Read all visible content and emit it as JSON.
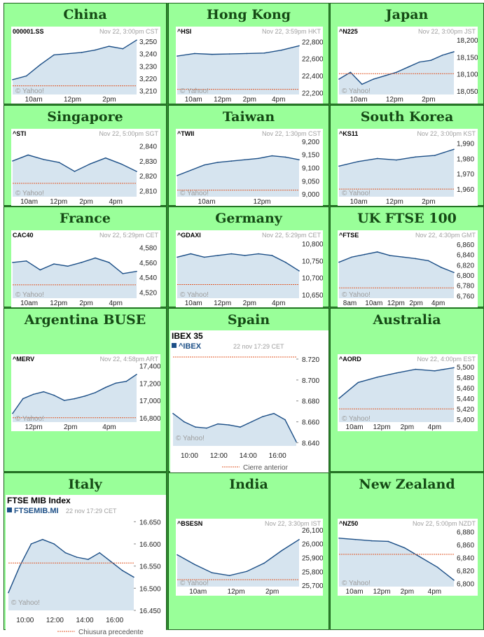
{
  "panels": [
    {
      "title": "China",
      "style": "small",
      "symbol": "000001.SS",
      "subtitle": "Nov 22, 3:00pm CST",
      "yticks": [
        "3,250",
        "3,240",
        "3,230",
        "3,220",
        "3,210"
      ],
      "xticks": [
        "10am",
        "12pm",
        "2pm"
      ]
    },
    {
      "title": "Hong Kong",
      "style": "small",
      "symbol": "^HSI",
      "subtitle": "Nov 22, 3:59pm HKT",
      "yticks": [
        "22,800",
        "22,600",
        "22,400",
        "22,200"
      ],
      "xticks": [
        "10am",
        "12pm",
        "2pm",
        "4pm"
      ]
    },
    {
      "title": "Japan",
      "style": "small",
      "symbol": "^N225",
      "subtitle": "Nov 22, 3:00pm JST",
      "yticks": [
        "18,200",
        "18,150",
        "18,100",
        "18,050"
      ],
      "xticks": [
        "10am",
        "12pm",
        "2pm"
      ]
    },
    {
      "title": "Singapore",
      "style": "small",
      "symbol": "^STI",
      "subtitle": "Nov 22, 5:00pm SGT",
      "yticks": [
        "2,840",
        "2,830",
        "2,820",
        "2,810"
      ],
      "xticks": [
        "10am",
        "12pm",
        "2pm",
        "4pm"
      ]
    },
    {
      "title": "Taiwan",
      "style": "small",
      "symbol": "^TWII",
      "subtitle": "Nov 22, 1:30pm CST",
      "yticks": [
        "9,200",
        "9,150",
        "9,100",
        "9,050",
        "9,000"
      ],
      "xticks": [
        "10am",
        "12pm"
      ]
    },
    {
      "title": "South Korea",
      "style": "small",
      "symbol": "^KS11",
      "subtitle": "Nov 22, 3:00pm KST",
      "yticks": [
        "1,990",
        "1,980",
        "1,970",
        "1,960"
      ],
      "xticks": [
        "10am",
        "12pm",
        "2pm"
      ]
    },
    {
      "title": "France",
      "style": "small",
      "symbol": "CAC40",
      "subtitle": "Nov 22, 5:29pm CET",
      "yticks": [
        "4,580",
        "4,560",
        "4,540",
        "4,520"
      ],
      "xticks": [
        "10am",
        "12pm",
        "2pm",
        "4pm"
      ]
    },
    {
      "title": "Germany",
      "style": "small",
      "symbol": "^GDAXI",
      "subtitle": "Nov 22, 5:29pm CET",
      "yticks": [
        "10,800",
        "10,750",
        "10,700",
        "10,650"
      ],
      "xticks": [
        "10am",
        "12pm",
        "2pm",
        "4pm"
      ]
    },
    {
      "title": "UK FTSE 100",
      "style": "small",
      "symbol": "^FTSE",
      "subtitle": "Nov 22, 4:30pm GMT",
      "yticks": [
        "6,860",
        "6,840",
        "6,820",
        "6,800",
        "6,780",
        "6,760"
      ],
      "xticks": [
        "8am",
        "10am",
        "12pm",
        "2pm",
        "4pm"
      ]
    },
    {
      "title": "Argentina BUSE",
      "style": "small",
      "symbol": "^MERV",
      "subtitle": "Nov 22, 4:58pm ART",
      "yticks": [
        "17,400",
        "17,200",
        "17,000",
        "16,800"
      ],
      "xticks": [
        "12pm",
        "2pm",
        "4pm"
      ]
    },
    {
      "title": "Spain",
      "style": "large",
      "name": "IBEX 35",
      "symbol": "^IBEX",
      "subtitle": "22 nov 17:29 CET",
      "yticks": [
        "8.720",
        "8.700",
        "8.680",
        "8.660",
        "8.640"
      ],
      "xticks": [
        "10:00",
        "12:00",
        "14:00",
        "16:00"
      ],
      "legend": "Cierre anterior"
    },
    {
      "title": "Australia",
      "style": "small",
      "symbol": "^AORD",
      "subtitle": "Nov 22, 4:00pm EST",
      "yticks": [
        "5,500",
        "5,480",
        "5,460",
        "5,440",
        "5,420",
        "5,400"
      ],
      "xticks": [
        "10am",
        "12pm",
        "2pm",
        "4pm"
      ]
    },
    {
      "title": "Italy",
      "style": "large",
      "name": "FTSE MIB Index",
      "symbol": "FTSEMIB.MI",
      "subtitle": "22 nov 17:29 CET",
      "yticks": [
        "16.650",
        "16.600",
        "16.550",
        "16.500",
        "16.450"
      ],
      "xticks": [
        "10:00",
        "12:00",
        "14:00",
        "16:00"
      ],
      "legend": "Chiusura precedente"
    },
    {
      "title": "India",
      "style": "small",
      "symbol": "^BSESN",
      "subtitle": "Nov 22, 3:30pm IST",
      "yticks": [
        "26,100",
        "26,000",
        "25,900",
        "25,800",
        "25,700"
      ],
      "xticks": [
        "10am",
        "12pm",
        "2pm"
      ]
    },
    {
      "title": "New Zealand",
      "style": "small",
      "symbol": "^NZ50",
      "subtitle": "Nov 22, 5:00pm NZDT",
      "yticks": [
        "6,880",
        "6,860",
        "6,840",
        "6,820",
        "6,800"
      ],
      "xticks": [
        "10am",
        "12pm",
        "2pm",
        "4pm"
      ]
    }
  ],
  "watermark": "© Yahoo!",
  "colors": {
    "page_bg": "#99ff99",
    "title_text": "#154a15",
    "line": "#1b4e86",
    "area": "#d6e4ef",
    "prev_close": "#e05a2a"
  },
  "chart_data": [
    {
      "type": "area",
      "title": "China",
      "series": [
        {
          "name": "000001.SS",
          "x": [
            "9:30",
            "10:00",
            "10:30",
            "11:00",
            "11:30",
            "13:00",
            "13:30",
            "14:00",
            "14:30",
            "15:00"
          ],
          "values": [
            3219,
            3222,
            3231,
            3239,
            3240,
            3241,
            3243,
            3246,
            3244,
            3251
          ]
        }
      ],
      "prev_close": 3214,
      "ylim": [
        3207,
        3254
      ]
    },
    {
      "type": "area",
      "title": "Hong Kong",
      "series": [
        {
          "name": "^HSI",
          "x": [
            "9:30",
            "10:30",
            "11:30",
            "12:30",
            "13:30",
            "14:30",
            "15:30",
            "16:00"
          ],
          "values": [
            22630,
            22660,
            22650,
            22655,
            22660,
            22665,
            22700,
            22750
          ]
        }
      ],
      "prev_close": 22240,
      "ylim": [
        22180,
        22860
      ]
    },
    {
      "type": "area",
      "title": "Japan",
      "series": [
        {
          "name": "^N225",
          "x": [
            "9:00",
            "9:30",
            "10:00",
            "10:30",
            "11:00",
            "11:30",
            "12:30",
            "13:30",
            "14:00",
            "14:30",
            "15:00"
          ],
          "values": [
            18085,
            18105,
            18070,
            18085,
            18095,
            18105,
            18120,
            18135,
            18140,
            18155,
            18165
          ]
        }
      ],
      "prev_close": 18101,
      "ylim": [
        18040,
        18210
      ]
    },
    {
      "type": "area",
      "title": "Singapore",
      "series": [
        {
          "name": "^STI",
          "x": [
            "9:00",
            "10:00",
            "11:00",
            "12:00",
            "13:00",
            "14:00",
            "15:00",
            "16:00",
            "17:00"
          ],
          "values": [
            2830,
            2834,
            2831,
            2829,
            2823,
            2828,
            2832,
            2828,
            2823
          ]
        }
      ],
      "prev_close": 2815,
      "ylim": [
        2806,
        2845
      ]
    },
    {
      "type": "area",
      "title": "Taiwan",
      "series": [
        {
          "name": "^TWII",
          "x": [
            "9:00",
            "9:30",
            "10:00",
            "10:30",
            "11:00",
            "11:30",
            "12:00",
            "12:30",
            "13:00",
            "13:30"
          ],
          "values": [
            9070,
            9090,
            9110,
            9120,
            9125,
            9130,
            9135,
            9145,
            9140,
            9130
          ]
        }
      ],
      "prev_close": 9015,
      "ylim": [
        8990,
        9210
      ]
    },
    {
      "type": "area",
      "title": "South Korea",
      "series": [
        {
          "name": "^KS11",
          "x": [
            "9:00",
            "10:00",
            "11:00",
            "12:00",
            "13:00",
            "14:00",
            "15:00"
          ],
          "values": [
            1975,
            1978,
            1980,
            1979,
            1981,
            1982,
            1986
          ]
        }
      ],
      "prev_close": 1960,
      "ylim": [
        1955,
        1993
      ]
    },
    {
      "type": "area",
      "title": "France",
      "series": [
        {
          "name": "CAC40",
          "x": [
            "9:00",
            "10:00",
            "11:00",
            "12:00",
            "13:00",
            "14:00",
            "15:00",
            "16:00",
            "17:00",
            "17:29"
          ],
          "values": [
            4560,
            4562,
            4550,
            4558,
            4555,
            4560,
            4566,
            4560,
            4545,
            4548
          ]
        }
      ],
      "prev_close": 4530,
      "ylim": [
        4512,
        4590
      ]
    },
    {
      "type": "area",
      "title": "Germany",
      "series": [
        {
          "name": "^GDAXI",
          "x": [
            "9:00",
            "10:00",
            "11:00",
            "12:00",
            "13:00",
            "14:00",
            "15:00",
            "16:00",
            "17:00",
            "17:29"
          ],
          "values": [
            10760,
            10770,
            10760,
            10765,
            10770,
            10765,
            10770,
            10765,
            10745,
            10720
          ]
        }
      ],
      "prev_close": 10680,
      "ylim": [
        10640,
        10810
      ]
    },
    {
      "type": "area",
      "title": "UK FTSE 100",
      "series": [
        {
          "name": "^FTSE",
          "x": [
            "8:00",
            "9:00",
            "10:00",
            "11:00",
            "12:00",
            "13:00",
            "14:00",
            "15:00",
            "16:00",
            "16:30"
          ],
          "values": [
            6825,
            6835,
            6840,
            6845,
            6838,
            6835,
            6832,
            6828,
            6815,
            6805
          ]
        }
      ],
      "prev_close": 6775,
      "ylim": [
        6755,
        6868
      ]
    },
    {
      "type": "area",
      "title": "Argentina BUSE",
      "series": [
        {
          "name": "^MERV",
          "x": [
            "11:00",
            "11:30",
            "12:00",
            "12:30",
            "13:00",
            "13:30",
            "14:00",
            "14:30",
            "15:00",
            "15:30",
            "16:00",
            "16:30",
            "17:00"
          ],
          "values": [
            16850,
            17020,
            17070,
            17100,
            17060,
            17000,
            17020,
            17050,
            17090,
            17150,
            17200,
            17220,
            17300
          ]
        }
      ],
      "prev_close": 16800,
      "ylim": [
        16750,
        17420
      ]
    },
    {
      "type": "area",
      "title": "Spain",
      "series": [
        {
          "name": "^IBEX",
          "x": [
            "9:00",
            "9:30",
            "10:00",
            "11:00",
            "12:00",
            "13:00",
            "14:00",
            "15:00",
            "16:00",
            "16:30",
            "17:00",
            "17:29"
          ],
          "values": [
            8668,
            8660,
            8655,
            8654,
            8658,
            8657,
            8655,
            8660,
            8665,
            8668,
            8662,
            8641
          ]
        }
      ],
      "prev_close": 8722,
      "ylim": [
        8637,
        8726
      ]
    },
    {
      "type": "area",
      "title": "Australia",
      "series": [
        {
          "name": "^AORD",
          "x": [
            "10:00",
            "11:00",
            "12:00",
            "13:00",
            "14:00",
            "15:00",
            "16:00"
          ],
          "values": [
            5440,
            5470,
            5480,
            5488,
            5495,
            5492,
            5498
          ]
        }
      ],
      "prev_close": 5420,
      "ylim": [
        5395,
        5505
      ]
    },
    {
      "type": "area",
      "title": "Italy",
      "series": [
        {
          "name": "FTSEMIB.MI",
          "x": [
            "9:00",
            "9:30",
            "10:00",
            "11:00",
            "12:00",
            "13:00",
            "14:00",
            "15:00",
            "16:00",
            "16:30",
            "17:00",
            "17:29"
          ],
          "values": [
            16490,
            16550,
            16600,
            16610,
            16600,
            16580,
            16570,
            16565,
            16580,
            16560,
            16540,
            16525
          ]
        }
      ],
      "prev_close": 16557,
      "ylim": [
        16450,
        16660
      ]
    },
    {
      "type": "area",
      "title": "India",
      "series": [
        {
          "name": "^BSESN",
          "x": [
            "9:15",
            "10:00",
            "11:00",
            "12:00",
            "13:00",
            "14:00",
            "15:00",
            "15:30"
          ],
          "values": [
            25920,
            25850,
            25790,
            25770,
            25800,
            25860,
            25950,
            26030
          ]
        }
      ],
      "prev_close": 25740,
      "ylim": [
        25690,
        26110
      ]
    },
    {
      "type": "area",
      "title": "New Zealand",
      "series": [
        {
          "name": "^NZ50",
          "x": [
            "10:00",
            "11:00",
            "12:00",
            "13:00",
            "14:00",
            "15:00",
            "16:00",
            "17:00"
          ],
          "values": [
            6870,
            6868,
            6866,
            6865,
            6855,
            6840,
            6825,
            6805
          ]
        }
      ],
      "prev_close": 6845,
      "ylim": [
        6795,
        6885
      ]
    }
  ]
}
